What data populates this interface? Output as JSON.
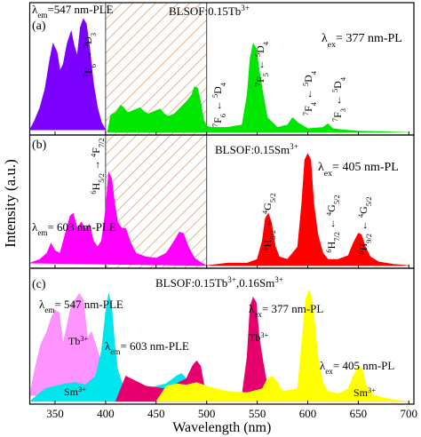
{
  "chart_data": [
    {
      "type": "area",
      "xlim": [
        325,
        705
      ],
      "ylim": [
        0,
        1
      ],
      "shaded_range": [
        400,
        500
      ],
      "series": [
        {
          "color": "#7b00ff",
          "x": [
            325,
            330,
            335,
            340,
            345,
            348,
            352,
            355,
            358,
            362,
            366,
            369,
            372,
            375,
            378,
            381,
            384,
            388,
            392,
            396,
            400
          ],
          "values": [
            0.02,
            0.1,
            0.2,
            0.35,
            0.6,
            0.72,
            0.65,
            0.5,
            0.55,
            0.72,
            0.82,
            0.7,
            0.62,
            0.85,
            0.92,
            0.88,
            0.7,
            0.4,
            0.2,
            0.08,
            0.02
          ]
        },
        {
          "color": "#00e600",
          "x": [
            402,
            405,
            410,
            415,
            418,
            422,
            428,
            434,
            438,
            442,
            448,
            454,
            458,
            462,
            468,
            474,
            480,
            485,
            488,
            491,
            494,
            497,
            500,
            505,
            520,
            535,
            540,
            543,
            546,
            549,
            552,
            556,
            560,
            570,
            580,
            585,
            590,
            600,
            615,
            620,
            625,
            635,
            650,
            700
          ],
          "values": [
            0,
            0.14,
            0.16,
            0.22,
            0.2,
            0.16,
            0.18,
            0.2,
            0.17,
            0.15,
            0.17,
            0.19,
            0.15,
            0.13,
            0.15,
            0.2,
            0.25,
            0.3,
            0.37,
            0.36,
            0.25,
            0.1,
            0.05,
            0.04,
            0.04,
            0.06,
            0.3,
            0.6,
            0.72,
            0.68,
            0.5,
            0.3,
            0.12,
            0.04,
            0.06,
            0.12,
            0.08,
            0.03,
            0.04,
            0.07,
            0.03,
            0.02,
            0.01,
            0
          ]
        }
      ],
      "annotations": [
        [
          {
            "text": "(a)"
          }
        ],
        [
          {
            "text": "λ"
          },
          {
            "sub": "em"
          },
          {
            "text": "=547 nm-PLE"
          }
        ],
        [
          {
            "text": "BLSOF:0.15Tb"
          },
          {
            "sup": "3+"
          }
        ],
        [
          {
            "text": "λ"
          },
          {
            "sub": "ex"
          },
          {
            "text": "= 377 nm-PL"
          }
        ],
        [
          {
            "sup": "7"
          },
          {
            "text": "F"
          },
          {
            "sub": "6"
          },
          {
            "text": " → "
          },
          {
            "sup": "5"
          },
          {
            "text": "D"
          },
          {
            "sub": "3"
          }
        ],
        [
          {
            "sup": "7"
          },
          {
            "text": "F"
          },
          {
            "sub": "6"
          },
          {
            "text": " ← "
          },
          {
            "sup": "5"
          },
          {
            "text": "D"
          },
          {
            "sub": "4"
          }
        ],
        [
          {
            "sup": "7"
          },
          {
            "text": "F"
          },
          {
            "sub": "5"
          },
          {
            "text": " ← "
          },
          {
            "sup": "5"
          },
          {
            "text": "D"
          },
          {
            "sub": "4"
          }
        ],
        [
          {
            "sup": "7"
          },
          {
            "text": "F"
          },
          {
            "sub": "4"
          },
          {
            "text": " ← "
          },
          {
            "sup": "5"
          },
          {
            "text": "D"
          },
          {
            "sub": "4"
          }
        ],
        [
          {
            "sup": "7"
          },
          {
            "text": "F"
          },
          {
            "sub": "3"
          },
          {
            "text": " ← "
          },
          {
            "sup": "5"
          },
          {
            "text": "D"
          },
          {
            "sub": "4"
          }
        ]
      ]
    },
    {
      "type": "area",
      "xlim": [
        325,
        705
      ],
      "ylim": [
        0,
        1
      ],
      "shaded_range": [
        400,
        500
      ],
      "ylabel": "Intensity (a.u.)",
      "series": [
        {
          "color": "#ff00ff",
          "x": [
            325,
            335,
            342,
            346,
            350,
            355,
            360,
            365,
            368,
            372,
            376,
            380,
            384,
            388,
            392,
            396,
            400,
            403,
            406,
            409,
            412,
            416,
            420,
            425,
            430,
            440,
            450,
            460,
            468,
            473,
            477,
            482,
            488,
            495,
            500
          ],
          "values": [
            0.02,
            0.05,
            0.1,
            0.18,
            0.12,
            0.1,
            0.25,
            0.4,
            0.42,
            0.3,
            0.35,
            0.3,
            0.33,
            0.2,
            0.15,
            0.2,
            0.45,
            0.75,
            0.7,
            0.5,
            0.35,
            0.3,
            0.3,
            0.18,
            0.1,
            0.07,
            0.06,
            0.1,
            0.2,
            0.27,
            0.26,
            0.15,
            0.06,
            0.02,
            0
          ]
        },
        {
          "color": "#ff0000",
          "x": [
            500,
            520,
            540,
            550,
            555,
            558,
            561,
            564,
            568,
            572,
            580,
            590,
            594,
            597,
            600,
            603,
            606,
            610,
            615,
            620,
            630,
            640,
            645,
            650,
            653,
            657,
            662,
            670,
            685,
            700
          ],
          "values": [
            0,
            0.02,
            0.02,
            0.05,
            0.2,
            0.38,
            0.42,
            0.35,
            0.15,
            0.07,
            0.05,
            0.15,
            0.5,
            0.85,
            0.9,
            0.85,
            0.5,
            0.25,
            0.1,
            0.05,
            0.05,
            0.08,
            0.18,
            0.26,
            0.25,
            0.15,
            0.07,
            0.03,
            0.01,
            0
          ]
        }
      ],
      "annotations": [
        [
          {
            "text": "(b)"
          }
        ],
        [
          {
            "text": "BLSOF:0.15Sm"
          },
          {
            "sup": "3+"
          }
        ],
        [
          {
            "text": "λ"
          },
          {
            "sub": "ex"
          },
          {
            "text": "= 405 nm-PL"
          }
        ],
        [
          {
            "text": "λ"
          },
          {
            "sub": "em"
          },
          {
            "text": "= 603 nm-PLE"
          }
        ],
        [
          {
            "sup": "6"
          },
          {
            "text": "H"
          },
          {
            "sub": "5/2"
          },
          {
            "text": " → "
          },
          {
            "sup": "4"
          },
          {
            "text": "F"
          },
          {
            "sub": "7/2"
          }
        ],
        [
          {
            "sup": "6"
          },
          {
            "text": "H"
          },
          {
            "sub": "5/2"
          },
          {
            "text": " ← "
          },
          {
            "sup": "4"
          },
          {
            "text": "G"
          },
          {
            "sub": "5/2"
          }
        ],
        [
          {
            "sup": "6"
          },
          {
            "text": "H"
          },
          {
            "sub": "7/2"
          },
          {
            "text": " ← "
          },
          {
            "sup": "4"
          },
          {
            "text": "G"
          },
          {
            "sub": "5/2"
          }
        ],
        [
          {
            "sup": "6"
          },
          {
            "text": "H"
          },
          {
            "sub": "9/2"
          },
          {
            "text": " ← "
          },
          {
            "sup": "4"
          },
          {
            "text": "G"
          },
          {
            "sub": "5/2"
          }
        ]
      ]
    },
    {
      "type": "area",
      "xlim": [
        325,
        705
      ],
      "ylim": [
        0,
        1
      ],
      "xticks": [
        350,
        400,
        450,
        500,
        550,
        600,
        650,
        700
      ],
      "xlabel": "Wavelength (nm)",
      "series": [
        {
          "color": "#ff80ff",
          "x": [
            325,
            330,
            336,
            342,
            346,
            350,
            354,
            358,
            362,
            366,
            370,
            374,
            378,
            382,
            386,
            390,
            394,
            398,
            402
          ],
          "values": [
            0.05,
            0.25,
            0.45,
            0.55,
            0.65,
            0.72,
            0.7,
            0.45,
            0.6,
            0.75,
            0.8,
            0.85,
            0.8,
            0.5,
            0.55,
            0.45,
            0.35,
            0.2,
            0
          ]
        },
        {
          "color": "#00e5ee",
          "x": [
            325,
            340,
            350,
            360,
            370,
            380,
            390,
            396,
            400,
            403,
            406,
            409,
            412,
            416,
            420,
            430,
            440,
            450,
            460,
            470,
            475,
            480,
            488,
            495,
            500
          ],
          "values": [
            0,
            0.1,
            0.12,
            0.14,
            0.15,
            0.13,
            0.2,
            0.4,
            0.7,
            0.85,
            0.75,
            0.45,
            0.25,
            0.15,
            0.12,
            0.1,
            0.1,
            0.12,
            0.14,
            0.2,
            0.22,
            0.18,
            0.1,
            0.04,
            0
          ]
        },
        {
          "color": "#e6006e",
          "x": [
            410,
            420,
            440,
            460,
            480,
            486,
            490,
            494,
            498,
            505,
            520,
            535,
            540,
            543,
            546,
            549,
            552,
            556,
            560,
            570,
            580,
            585,
            590,
            600,
            700
          ],
          "values": [
            0,
            0.2,
            0.12,
            0.1,
            0.18,
            0.28,
            0.32,
            0.28,
            0.1,
            0.05,
            0.04,
            0.05,
            0.35,
            0.75,
            0.82,
            0.78,
            0.5,
            0.3,
            0.12,
            0.05,
            0.05,
            0.08,
            0.05,
            0.03,
            0
          ]
        },
        {
          "color": "#ffff00",
          "x": [
            450,
            460,
            470,
            480,
            490,
            500,
            520,
            540,
            555,
            560,
            565,
            570,
            575,
            590,
            595,
            598,
            601,
            604,
            607,
            610,
            615,
            620,
            630,
            640,
            645,
            650,
            654,
            658,
            665,
            680,
            700
          ],
          "values": [
            0,
            0.12,
            0.14,
            0.13,
            0.15,
            0.12,
            0.08,
            0.07,
            0.1,
            0.18,
            0.2,
            0.15,
            0.08,
            0.1,
            0.55,
            0.8,
            0.88,
            0.82,
            0.6,
            0.35,
            0.15,
            0.08,
            0.06,
            0.1,
            0.2,
            0.28,
            0.25,
            0.12,
            0.05,
            0.02,
            0
          ]
        }
      ],
      "annotations": [
        [
          {
            "text": "(c)"
          }
        ],
        [
          {
            "text": "BLSOF:0.15Tb"
          },
          {
            "sup": "3+"
          },
          {
            "text": ",0.16Sm"
          },
          {
            "sup": "3+"
          }
        ],
        [
          {
            "text": "λ"
          },
          {
            "sub": "em"
          },
          {
            "text": "= 547 nm-PLE"
          }
        ],
        [
          {
            "text": "λ"
          },
          {
            "sub": "em"
          },
          {
            "text": "= 603 nm-PLE"
          }
        ],
        [
          {
            "text": "λ"
          },
          {
            "sub": "ex"
          },
          {
            "text": "= 377 nm-PL"
          }
        ],
        [
          {
            "text": "λ"
          },
          {
            "sub": "ex"
          },
          {
            "text": "= 405 nm-PL"
          }
        ],
        [
          {
            "text": "Tb"
          },
          {
            "sup": "3+"
          }
        ],
        [
          {
            "text": "Sm"
          },
          {
            "sup": "3+"
          }
        ],
        [
          {
            "text": "Tb"
          },
          {
            "sup": "3+"
          }
        ],
        [
          {
            "text": "Sm"
          },
          {
            "sup": "3+"
          }
        ]
      ]
    }
  ]
}
